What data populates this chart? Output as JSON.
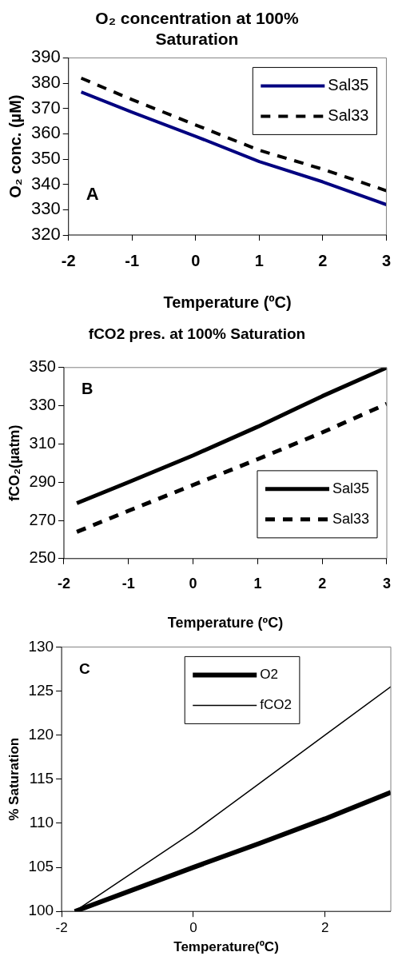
{
  "chart_data": [
    {
      "type": "line",
      "title": "O₂ concentration at 100% Saturation",
      "xlabel": "Temperature (ºC)",
      "ylabel": "O₂ conc. (µM)",
      "annotations": [
        "A"
      ],
      "x": [
        -1.8,
        -1,
        0,
        1,
        2,
        3
      ],
      "series": [
        {
          "name": "Sal35",
          "color": "#000080",
          "values": [
            376.5,
            368.5,
            359,
            349,
            341,
            332
          ]
        },
        {
          "name": "Sal33",
          "color": "#000000",
          "line_style": "dashed",
          "values": [
            382,
            373.5,
            363.5,
            353.5,
            346,
            337.5
          ]
        }
      ],
      "xlim": [
        -2,
        3
      ],
      "xticks": [
        -2,
        -1,
        0,
        1,
        2,
        3
      ],
      "ylim": [
        320,
        390
      ],
      "yticks": [
        320,
        330,
        340,
        350,
        360,
        370,
        380,
        390
      ],
      "grid": false,
      "legend": "top right",
      "marker": "none",
      "line_style": "solid"
    },
    {
      "type": "line",
      "title": "fCO2 pres. at 100% Saturation",
      "xlabel": "Temperature (ºC)",
      "ylabel": "fCO₂(µatm)",
      "annotations": [
        "B"
      ],
      "x": [
        -1.8,
        -1,
        0,
        1,
        2,
        3
      ],
      "series": [
        {
          "name": "Sal35",
          "color": "#000000",
          "values": [
            279,
            290,
            304,
            319,
            335,
            350
          ]
        },
        {
          "name": "Sal33",
          "color": "#000000",
          "line_style": "dashed",
          "values": [
            264,
            275,
            288.5,
            302,
            316,
            331
          ]
        }
      ],
      "xlim": [
        -2,
        3
      ],
      "xticks": [
        -2,
        -1,
        0,
        1,
        2,
        3
      ],
      "ylim": [
        250,
        350
      ],
      "yticks": [
        250,
        270,
        290,
        310,
        330,
        350
      ],
      "grid": false,
      "legend": "right",
      "marker": "none",
      "line_style": "solid"
    },
    {
      "type": "line",
      "xlabel": "Temperature(ºC)",
      "ylabel": "% Saturation",
      "annotations": [
        "C"
      ],
      "x": [
        -1.8,
        0,
        1,
        2,
        3
      ],
      "series": [
        {
          "name": "O2",
          "color": "#000000",
          "values": [
            100,
            105,
            107.7,
            110.5,
            113.5
          ]
        },
        {
          "name": "fCO2",
          "color": "#000000",
          "values": [
            100,
            109,
            114.5,
            120,
            125.5
          ]
        }
      ],
      "xlim": [
        -2,
        3
      ],
      "xticks": [
        -2,
        0,
        2
      ],
      "ylim": [
        100,
        130
      ],
      "yticks": [
        100,
        105,
        110,
        115,
        120,
        125,
        130
      ],
      "grid": false,
      "legend": "top",
      "marker": "none",
      "line_style": "solid"
    }
  ]
}
